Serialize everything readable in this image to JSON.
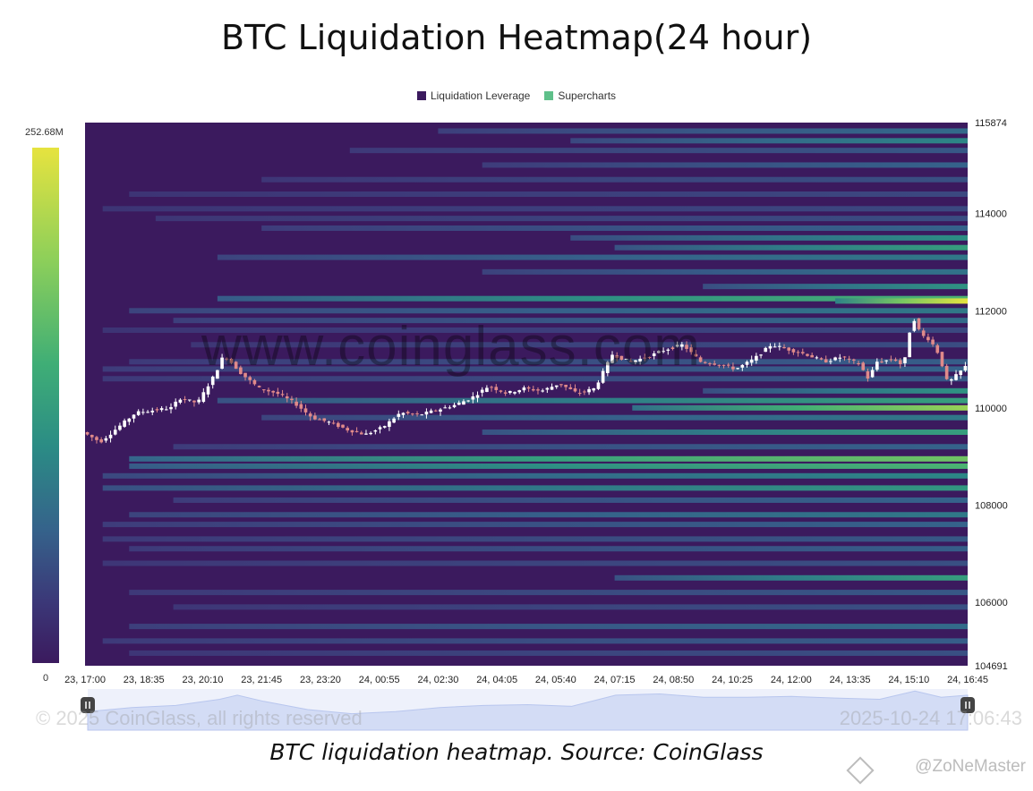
{
  "title": "BTC Liquidation Heatmap(24 hour)",
  "legend": {
    "items": [
      {
        "label": "Liquidation Leverage",
        "color": "#3b1a5e"
      },
      {
        "label": "Supercharts",
        "color": "#5fc08a"
      }
    ]
  },
  "colorbar": {
    "max_label": "252.68M",
    "min_label": "0"
  },
  "watermark": "www.coinglass.com",
  "footer": {
    "copyright": "© 2025 CoinGlass, all rights reserved",
    "timestamp": "2025-10-24 17:06:43"
  },
  "caption": "BTC liquidation heatmap. Source: CoinGlass",
  "author": "@ZoNeMaster",
  "chart_data": {
    "type": "heatmap",
    "x_tick_labels": [
      "23, 17:00",
      "23, 18:35",
      "23, 20:10",
      "23, 21:45",
      "23, 23:20",
      "24, 00:55",
      "24, 02:30",
      "24, 04:05",
      "24, 05:40",
      "24, 07:15",
      "24, 08:50",
      "24, 10:25",
      "24, 12:00",
      "24, 13:35",
      "24, 15:10",
      "24, 16:45"
    ],
    "y_tick_labels": [
      "115874",
      "114000",
      "112000",
      "110000",
      "108000",
      "106000",
      "104691"
    ],
    "ylim": [
      104691,
      115874
    ],
    "colors": {
      "background": "#3b1a5e",
      "candle_up": "#ffffff",
      "candle_down": "#e08a8a"
    },
    "bands": [
      {
        "price": 115700,
        "start": 0.4,
        "intensity": 0.25
      },
      {
        "price": 115500,
        "start": 0.55,
        "intensity": 0.35
      },
      {
        "price": 115300,
        "start": 0.3,
        "intensity": 0.18
      },
      {
        "price": 115000,
        "start": 0.45,
        "intensity": 0.22
      },
      {
        "price": 114700,
        "start": 0.2,
        "intensity": 0.15
      },
      {
        "price": 114400,
        "start": 0.05,
        "intensity": 0.12
      },
      {
        "price": 114100,
        "start": 0.02,
        "intensity": 0.12
      },
      {
        "price": 113900,
        "start": 0.08,
        "intensity": 0.14
      },
      {
        "price": 113700,
        "start": 0.2,
        "intensity": 0.22
      },
      {
        "price": 113500,
        "start": 0.55,
        "intensity": 0.38
      },
      {
        "price": 113300,
        "start": 0.6,
        "intensity": 0.45
      },
      {
        "price": 113100,
        "start": 0.15,
        "intensity": 0.3
      },
      {
        "price": 112800,
        "start": 0.45,
        "intensity": 0.28
      },
      {
        "price": 112500,
        "start": 0.7,
        "intensity": 0.4
      },
      {
        "price": 112250,
        "start": 0.15,
        "intensity": 0.55
      },
      {
        "price": 112200,
        "start": 0.85,
        "intensity": 0.95
      },
      {
        "price": 112000,
        "start": 0.05,
        "intensity": 0.3
      },
      {
        "price": 111800,
        "start": 0.1,
        "intensity": 0.25
      },
      {
        "price": 111600,
        "start": 0.02,
        "intensity": 0.12
      },
      {
        "price": 111300,
        "start": 0.12,
        "intensity": 0.14
      },
      {
        "price": 110950,
        "start": 0.05,
        "intensity": 0.2
      },
      {
        "price": 110800,
        "start": 0.02,
        "intensity": 0.22
      },
      {
        "price": 110600,
        "start": 0.02,
        "intensity": 0.18
      },
      {
        "price": 110350,
        "start": 0.7,
        "intensity": 0.4
      },
      {
        "price": 110150,
        "start": 0.15,
        "intensity": 0.45
      },
      {
        "price": 110000,
        "start": 0.62,
        "intensity": 0.75
      },
      {
        "price": 109800,
        "start": 0.2,
        "intensity": 0.3
      },
      {
        "price": 109500,
        "start": 0.45,
        "intensity": 0.45
      },
      {
        "price": 109200,
        "start": 0.1,
        "intensity": 0.22
      },
      {
        "price": 108950,
        "start": 0.05,
        "intensity": 0.65
      },
      {
        "price": 108800,
        "start": 0.05,
        "intensity": 0.55
      },
      {
        "price": 108600,
        "start": 0.02,
        "intensity": 0.35
      },
      {
        "price": 108350,
        "start": 0.02,
        "intensity": 0.42
      },
      {
        "price": 108100,
        "start": 0.1,
        "intensity": 0.22
      },
      {
        "price": 107800,
        "start": 0.05,
        "intensity": 0.3
      },
      {
        "price": 107600,
        "start": 0.02,
        "intensity": 0.22
      },
      {
        "price": 107300,
        "start": 0.02,
        "intensity": 0.18
      },
      {
        "price": 107100,
        "start": 0.05,
        "intensity": 0.2
      },
      {
        "price": 106800,
        "start": 0.02,
        "intensity": 0.15
      },
      {
        "price": 106500,
        "start": 0.6,
        "intensity": 0.45
      },
      {
        "price": 106200,
        "start": 0.05,
        "intensity": 0.18
      },
      {
        "price": 105900,
        "start": 0.1,
        "intensity": 0.15
      },
      {
        "price": 105500,
        "start": 0.05,
        "intensity": 0.25
      },
      {
        "price": 105200,
        "start": 0.02,
        "intensity": 0.2
      },
      {
        "price": 104950,
        "start": 0.05,
        "intensity": 0.15
      }
    ],
    "price_path": [
      [
        0.0,
        109500
      ],
      [
        0.02,
        109300
      ],
      [
        0.04,
        109600
      ],
      [
        0.06,
        109900
      ],
      [
        0.08,
        109950
      ],
      [
        0.1,
        110000
      ],
      [
        0.11,
        110200
      ],
      [
        0.13,
        110100
      ],
      [
        0.15,
        110700
      ],
      [
        0.16,
        111100
      ],
      [
        0.18,
        110700
      ],
      [
        0.2,
        110400
      ],
      [
        0.22,
        110300
      ],
      [
        0.24,
        110100
      ],
      [
        0.26,
        109800
      ],
      [
        0.28,
        109700
      ],
      [
        0.3,
        109550
      ],
      [
        0.32,
        109450
      ],
      [
        0.34,
        109600
      ],
      [
        0.36,
        109900
      ],
      [
        0.38,
        109850
      ],
      [
        0.4,
        109950
      ],
      [
        0.42,
        110050
      ],
      [
        0.44,
        110200
      ],
      [
        0.46,
        110450
      ],
      [
        0.48,
        110300
      ],
      [
        0.5,
        110400
      ],
      [
        0.52,
        110350
      ],
      [
        0.54,
        110500
      ],
      [
        0.56,
        110300
      ],
      [
        0.58,
        110400
      ],
      [
        0.6,
        111100
      ],
      [
        0.62,
        110950
      ],
      [
        0.64,
        111050
      ],
      [
        0.66,
        111200
      ],
      [
        0.68,
        111300
      ],
      [
        0.7,
        110950
      ],
      [
        0.72,
        110900
      ],
      [
        0.74,
        110800
      ],
      [
        0.76,
        111000
      ],
      [
        0.78,
        111300
      ],
      [
        0.8,
        111200
      ],
      [
        0.82,
        111100
      ],
      [
        0.84,
        110950
      ],
      [
        0.86,
        111050
      ],
      [
        0.88,
        110900
      ],
      [
        0.89,
        110600
      ],
      [
        0.9,
        110950
      ],
      [
        0.92,
        111000
      ],
      [
        0.93,
        110850
      ],
      [
        0.94,
        111900
      ],
      [
        0.95,
        111500
      ],
      [
        0.96,
        111400
      ],
      [
        0.97,
        111100
      ],
      [
        0.98,
        110500
      ],
      [
        1.0,
        110850
      ]
    ],
    "navigator_path": [
      [
        0.0,
        0.55
      ],
      [
        0.05,
        0.45
      ],
      [
        0.1,
        0.4
      ],
      [
        0.15,
        0.25
      ],
      [
        0.17,
        0.15
      ],
      [
        0.2,
        0.3
      ],
      [
        0.25,
        0.5
      ],
      [
        0.3,
        0.6
      ],
      [
        0.35,
        0.55
      ],
      [
        0.4,
        0.45
      ],
      [
        0.45,
        0.4
      ],
      [
        0.5,
        0.38
      ],
      [
        0.55,
        0.42
      ],
      [
        0.6,
        0.15
      ],
      [
        0.65,
        0.12
      ],
      [
        0.7,
        0.2
      ],
      [
        0.75,
        0.2
      ],
      [
        0.8,
        0.18
      ],
      [
        0.85,
        0.22
      ],
      [
        0.9,
        0.25
      ],
      [
        0.94,
        0.05
      ],
      [
        0.97,
        0.2
      ],
      [
        1.0,
        0.15
      ]
    ]
  }
}
